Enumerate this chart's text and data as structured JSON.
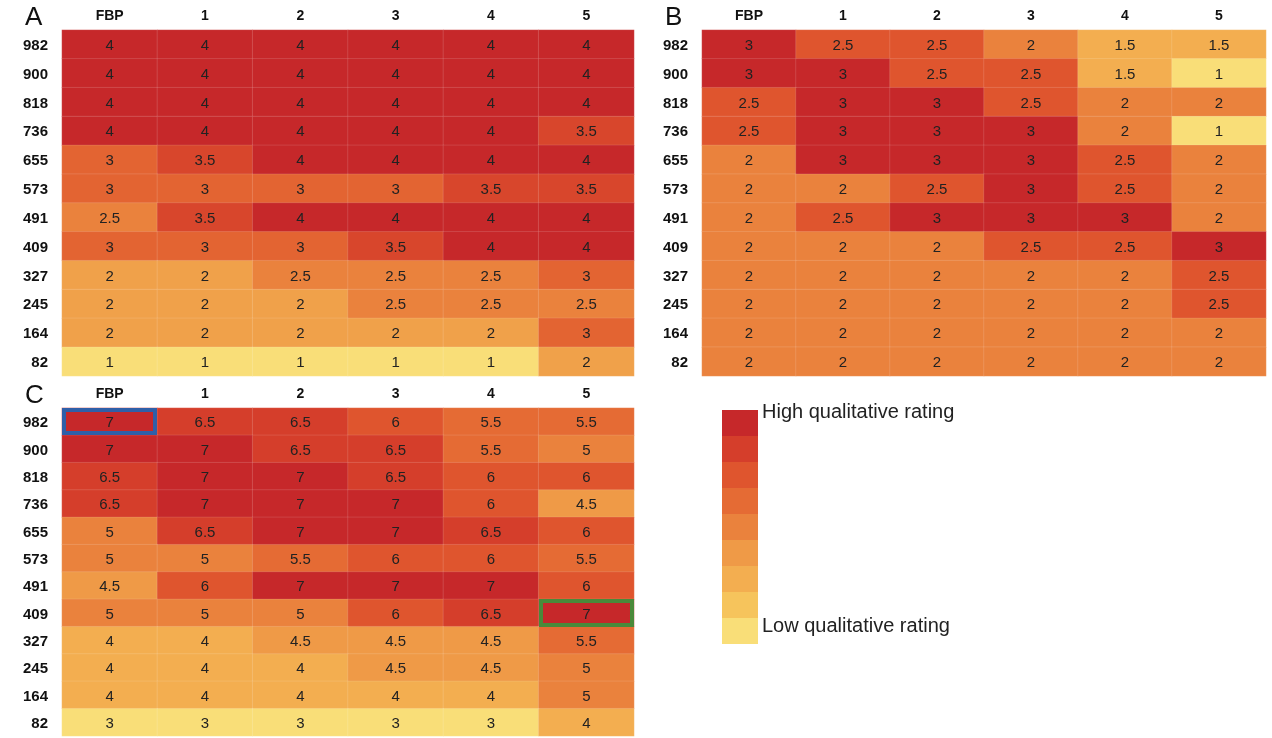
{
  "chart_data": [
    {
      "type": "heatmap",
      "title": "A",
      "categories": [
        "FBP",
        "1",
        "2",
        "3",
        "4",
        "5"
      ],
      "y_categories": [
        "982",
        "900",
        "818",
        "736",
        "655",
        "573",
        "491",
        "409",
        "327",
        "245",
        "164",
        "82"
      ],
      "data_labels": true,
      "cells": [
        [
          4,
          4,
          4,
          4,
          4,
          4
        ],
        [
          4,
          4,
          4,
          4,
          4,
          4
        ],
        [
          4,
          4,
          4,
          4,
          4,
          4
        ],
        [
          4,
          4,
          4,
          4,
          4,
          3.5
        ],
        [
          3,
          3.5,
          4,
          4,
          4,
          4
        ],
        [
          3,
          3,
          3,
          3,
          3.5,
          3.5
        ],
        [
          2.5,
          3.5,
          4,
          4,
          4,
          4
        ],
        [
          3,
          3,
          3,
          3.5,
          4,
          4
        ],
        [
          2,
          2,
          2.5,
          2.5,
          2.5,
          3
        ],
        [
          2,
          2,
          2,
          2.5,
          2.5,
          2.5
        ],
        [
          2,
          2,
          2,
          2,
          2,
          3
        ],
        [
          1,
          1,
          1,
          1,
          1,
          2
        ]
      ]
    },
    {
      "type": "heatmap",
      "title": "B",
      "categories": [
        "FBP",
        "1",
        "2",
        "3",
        "4",
        "5"
      ],
      "y_categories": [
        "982",
        "900",
        "818",
        "736",
        "655",
        "573",
        "491",
        "409",
        "327",
        "245",
        "164",
        "82"
      ],
      "data_labels": true,
      "cells": [
        [
          3,
          2.5,
          2.5,
          2,
          1.5,
          1.5
        ],
        [
          3,
          3,
          2.5,
          2.5,
          1.5,
          1
        ],
        [
          2.5,
          3,
          3,
          2.5,
          2,
          2
        ],
        [
          2.5,
          3,
          3,
          3,
          2,
          1
        ],
        [
          2,
          3,
          3,
          3,
          2.5,
          2
        ],
        [
          2,
          2,
          2.5,
          3,
          2.5,
          2
        ],
        [
          2,
          2.5,
          3,
          3,
          3,
          2
        ],
        [
          2,
          2,
          2,
          2.5,
          2.5,
          3
        ],
        [
          2,
          2,
          2,
          2,
          2,
          2.5
        ],
        [
          2,
          2,
          2,
          2,
          2,
          2.5
        ],
        [
          2,
          2,
          2,
          2,
          2,
          2
        ],
        [
          2,
          2,
          2,
          2,
          2,
          2
        ]
      ]
    },
    {
      "type": "heatmap",
      "title": "C",
      "categories": [
        "FBP",
        "1",
        "2",
        "3",
        "4",
        "5"
      ],
      "y_categories": [
        "982",
        "900",
        "818",
        "736",
        "655",
        "573",
        "491",
        "409",
        "327",
        "245",
        "164",
        "82"
      ],
      "data_labels": true,
      "cells": [
        [
          7,
          6.5,
          6.5,
          6,
          5.5,
          5.5
        ],
        [
          7,
          7,
          6.5,
          6.5,
          5.5,
          5
        ],
        [
          6.5,
          7,
          7,
          6.5,
          6,
          6
        ],
        [
          6.5,
          7,
          7,
          7,
          6,
          4.5
        ],
        [
          5,
          6.5,
          7,
          7,
          6.5,
          6
        ],
        [
          5,
          5,
          5.5,
          6,
          6,
          5.5
        ],
        [
          4.5,
          6,
          7,
          7,
          7,
          6
        ],
        [
          5,
          5,
          5,
          6,
          6.5,
          7
        ],
        [
          4,
          4,
          4.5,
          4.5,
          4.5,
          5.5
        ],
        [
          4,
          4,
          4,
          4.5,
          4.5,
          5
        ],
        [
          4,
          4,
          4,
          4,
          4,
          5
        ],
        [
          3,
          3,
          3,
          3,
          3,
          4
        ]
      ]
    },
    {
      "type": "other",
      "annotations": [
        "High qualitative rating",
        "Low qualitative rating"
      ]
    }
  ]
}
